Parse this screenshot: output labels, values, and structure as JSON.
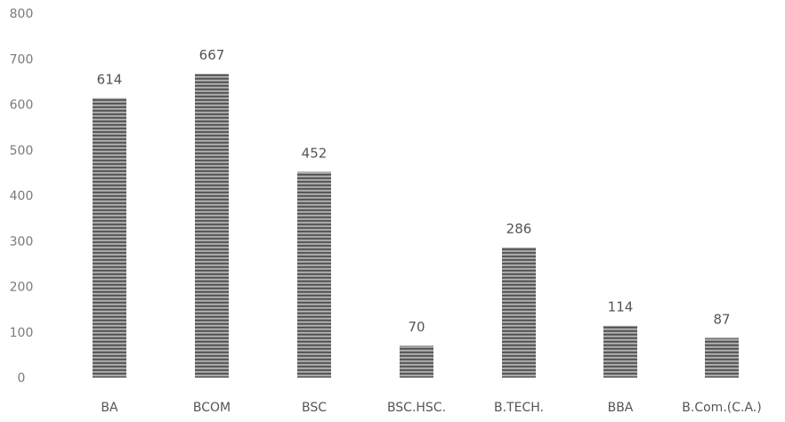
{
  "chart_data": {
    "type": "bar",
    "title": "",
    "xlabel": "",
    "ylabel": "",
    "ylim": [
      0,
      800
    ],
    "yticks": [
      0,
      100,
      200,
      300,
      400,
      500,
      600,
      700,
      800
    ],
    "ytick_labels": [
      "0",
      "100",
      "200",
      "300",
      "400",
      "500",
      "600",
      "700",
      "800"
    ],
    "grid": false,
    "legend": "none",
    "categories": [
      "BA",
      "BCOM",
      "BSC",
      "BSC.HSC.",
      "B.TECH.",
      "BBA",
      "B.Com.(C.A.)"
    ],
    "values": [
      614,
      667,
      452,
      70,
      286,
      114,
      87
    ],
    "data_labels": [
      "614",
      "667",
      "452",
      "70",
      "286",
      "114",
      "87"
    ],
    "bar_color": "#777777"
  }
}
